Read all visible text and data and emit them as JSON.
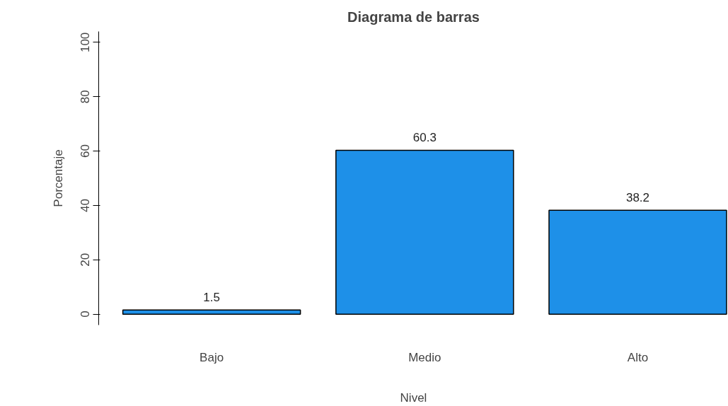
{
  "chart_data": {
    "type": "bar",
    "title": "Diagrama de barras",
    "xlabel": "Nivel",
    "ylabel": "Porcentaje",
    "categories": [
      "Bajo",
      "Medio",
      "Alto"
    ],
    "values": [
      1.5,
      60.3,
      38.2
    ],
    "color": "#1e90e8",
    "ylim": [
      -4,
      104
    ],
    "yticks": [
      0,
      20,
      40,
      60,
      80,
      100
    ],
    "data_labels": true,
    "grid": false
  }
}
